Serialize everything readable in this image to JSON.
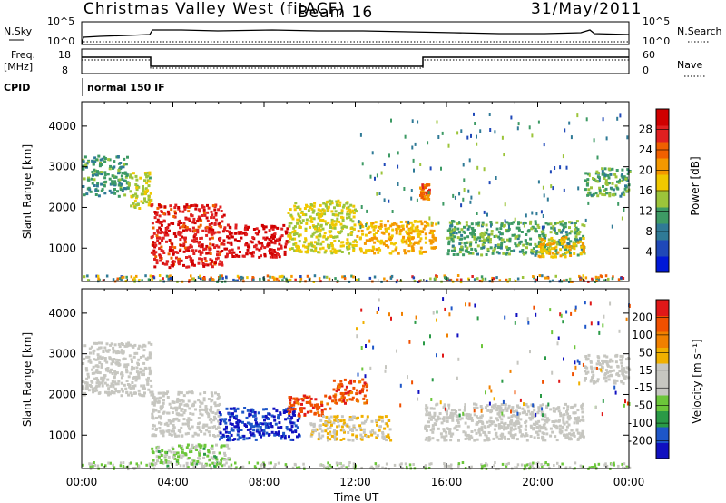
{
  "header": {
    "station": "Christmas Valley West (fitACF)",
    "beam": "Beam 16",
    "date": "31/May/2011"
  },
  "top_panels": {
    "nsky_label": "N.Sky",
    "nsearch_label": "N.Search",
    "nsky_ticks": [
      "10^5",
      "10^0"
    ],
    "nsearch_ticks": [
      "10^5",
      "10^0"
    ],
    "freq_label": "Freq.",
    "freq_unit": "[MHz]",
    "freq_ticks": [
      "18",
      "8"
    ],
    "nave_label": "Nave",
    "nave_ticks": [
      "60",
      "0"
    ],
    "cpid_label": "CPID",
    "cpid_value": "normal 150 IF"
  },
  "x_axis": {
    "label": "Time UT",
    "ticks": [
      "00:00",
      "04:00",
      "08:00",
      "12:00",
      "16:00",
      "20:00",
      "00:00"
    ]
  },
  "power_panel": {
    "ylabel": "Slant Range [km]",
    "yticks": [
      "4000",
      "3000",
      "2000",
      "1000"
    ],
    "colorbar_label": "Power [dB]",
    "colorbar_ticks": [
      "28",
      "24",
      "20",
      "16",
      "12",
      "8",
      "4"
    ]
  },
  "velocity_panel": {
    "ylabel": "Slant Range [km]",
    "yticks": [
      "4000",
      "3000",
      "2000",
      "1000"
    ],
    "colorbar_label": "Velocity [m s⁻¹]",
    "colorbar_ticks": [
      "200",
      "100",
      "50",
      "15",
      "-15",
      "-50",
      "-100",
      "-200"
    ]
  },
  "colors": {
    "power_scale": [
      "#0018d8",
      "#1f48b8",
      "#2f7a96",
      "#3d9a64",
      "#9cc43a",
      "#f0c800",
      "#f49800",
      "#f06000",
      "#e02020",
      "#d00000"
    ],
    "velocity_scale": [
      "#1010c0",
      "#1e56c8",
      "#2a9a46",
      "#6cc63a",
      "#c6c6c0",
      "#c6c6c0",
      "#f0b000",
      "#f08000",
      "#f05000",
      "#e01818"
    ]
  },
  "chart_data": [
    {
      "type": "heatmap",
      "title": "",
      "quantity": "Power",
      "unit": "dB",
      "xlabel": "Time UT",
      "ylabel": "Slant Range [km]",
      "xlim": [
        0,
        24
      ],
      "ylim": [
        180,
        4600
      ],
      "clim": [
        0,
        30
      ],
      "grid": false,
      "features": [
        {
          "t": [
            0.0,
            2.0
          ],
          "r": [
            2300,
            3300
          ],
          "value": 10
        },
        {
          "t": [
            2.0,
            3.0
          ],
          "r": [
            2000,
            2900
          ],
          "value": 14
        },
        {
          "t": [
            3.0,
            6.2
          ],
          "r": [
            550,
            2100
          ],
          "value": 26
        },
        {
          "t": [
            6.2,
            9.0
          ],
          "r": [
            800,
            1600
          ],
          "value": 27
        },
        {
          "t": [
            9.0,
            12.0
          ],
          "r": [
            900,
            2200
          ],
          "value": 15
        },
        {
          "t": [
            12.0,
            15.5
          ],
          "r": [
            900,
            1700
          ],
          "value": 18
        },
        {
          "t": [
            14.8,
            15.2
          ],
          "r": [
            2200,
            2600
          ],
          "value": 22
        },
        {
          "t": [
            16.0,
            22.0
          ],
          "r": [
            850,
            1700
          ],
          "value": 11
        },
        {
          "t": [
            20.0,
            22.0
          ],
          "r": [
            800,
            1300
          ],
          "value": 18
        },
        {
          "t": [
            22.0,
            24.0
          ],
          "r": [
            2300,
            3000
          ],
          "value": 11
        }
      ]
    },
    {
      "type": "heatmap",
      "title": "",
      "quantity": "Velocity",
      "unit": "m s^-1",
      "xlabel": "Time UT",
      "ylabel": "Slant Range [km]",
      "xlim": [
        0,
        24
      ],
      "ylim": [
        180,
        4600
      ],
      "clim": [
        -250,
        250
      ],
      "grid": false,
      "features": [
        {
          "t": [
            0.0,
            3.0
          ],
          "r": [
            2000,
            3300
          ],
          "value": 0
        },
        {
          "t": [
            3.0,
            6.0
          ],
          "r": [
            1000,
            2100
          ],
          "value": 0
        },
        {
          "t": [
            3.0,
            6.5
          ],
          "r": [
            250,
            800
          ],
          "value": -60
        },
        {
          "t": [
            6.0,
            9.5
          ],
          "r": [
            900,
            1700
          ],
          "value": -200
        },
        {
          "t": [
            9.0,
            11.0
          ],
          "r": [
            1500,
            2000
          ],
          "value": 180
        },
        {
          "t": [
            10.0,
            13.5
          ],
          "r": [
            900,
            1500
          ],
          "value": 40
        },
        {
          "t": [
            11.0,
            12.5
          ],
          "r": [
            1800,
            2400
          ],
          "value": 170
        },
        {
          "t": [
            15.0,
            22.0
          ],
          "r": [
            900,
            1800
          ],
          "value": 0
        },
        {
          "t": [
            22.0,
            24.0
          ],
          "r": [
            2300,
            3000
          ],
          "value": 0
        }
      ]
    }
  ]
}
